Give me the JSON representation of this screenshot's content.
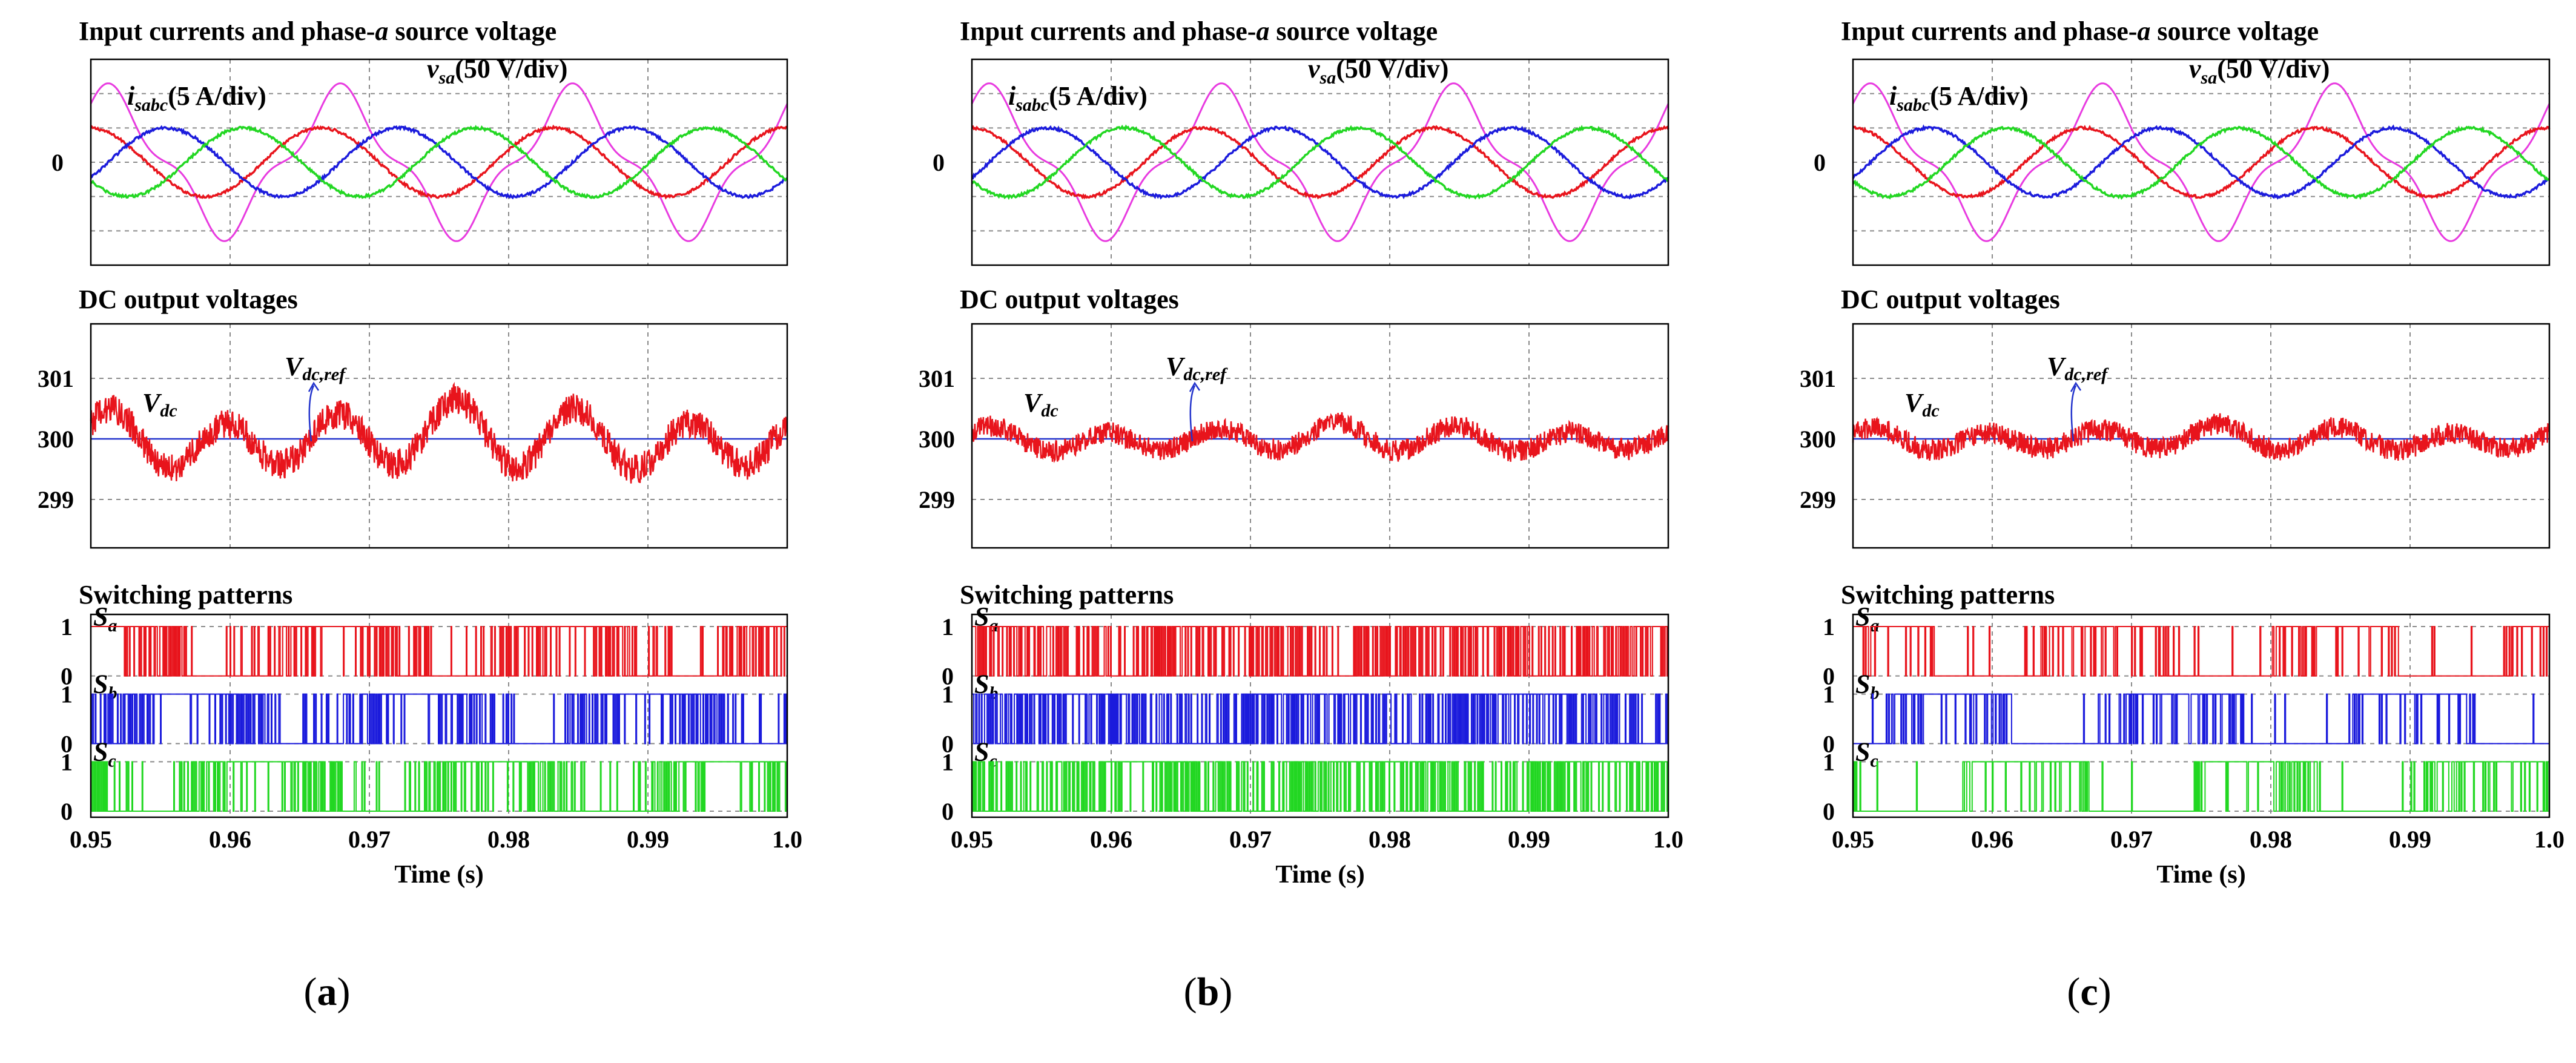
{
  "colors": {
    "phase_a": "#e8141c",
    "phase_b": "#1b1bdc",
    "phase_c": "#22d722",
    "source_voltage": "#e83be0",
    "vdc_ref": "#2233cc",
    "grid": "#8a8a8a"
  },
  "chart_data": [
    {
      "label": "(a)",
      "type": "line",
      "x_label": "Time (s)",
      "x_ticks": [
        "0.95",
        "0.96",
        "0.97",
        "0.98",
        "0.99",
        "1.0"
      ],
      "xlim": [
        0.95,
        1.0
      ],
      "currents": {
        "title": "Input currents and phase-a source voltage",
        "title_parts": [
          "Input currents and phase-",
          "a",
          " source voltage"
        ],
        "y_tick": "0",
        "current_label_main": "i",
        "current_label_sub": "sabc",
        "current_label_scale": "(5 A/div)",
        "voltage_label_main": "v",
        "voltage_label_sub": "sa",
        "voltage_label_scale": "(50 V/div)",
        "frequency_hz": 60,
        "current_amplitude_div": 1.0,
        "current_phase_deg": [
          30,
          -90,
          150
        ],
        "voltage_amplitude_div": 2.3,
        "voltage_phase_deg": 0,
        "voltage_shape": "peaked sinusoid",
        "ylim_div": [
          -3,
          3
        ]
      },
      "dc": {
        "title": "DC output voltages",
        "y_ticks": [
          "301",
          "300",
          "299"
        ],
        "ylim": [
          298.2,
          301.9
        ],
        "vdc_ref": 300,
        "ripple_peak_to_peak": 1.2,
        "ripple_frequency_hz": 120,
        "noise": 0.25,
        "vdc_label_main": "V",
        "vdc_label_sub": "dc",
        "ref_label_main": "V",
        "ref_label_sub": "dc,ref"
      },
      "switching": {
        "title": "Switching patterns",
        "signals": [
          {
            "name_main": "S",
            "name_sub": "a",
            "high": "1",
            "low": "0",
            "duty_pattern": "chattering"
          },
          {
            "name_main": "S",
            "name_sub": "b",
            "high": "1",
            "low": "0",
            "duty_pattern": "chattering"
          },
          {
            "name_main": "S",
            "name_sub": "c",
            "high": "1",
            "low": "0",
            "duty_pattern": "chattering"
          }
        ]
      }
    },
    {
      "label": "(b)",
      "type": "line",
      "x_label": "Time (s)",
      "x_ticks": [
        "0.95",
        "0.96",
        "0.97",
        "0.98",
        "0.99",
        "1.0"
      ],
      "xlim": [
        0.95,
        1.0
      ],
      "currents": {
        "title": "Input currents and phase-a source voltage",
        "title_parts": [
          "Input currents and phase-",
          "a",
          " source voltage"
        ],
        "y_tick": "0",
        "current_label_main": "i",
        "current_label_sub": "sabc",
        "current_label_scale": "(5 A/div)",
        "voltage_label_main": "v",
        "voltage_label_sub": "sa",
        "voltage_label_scale": "(50 V/div)",
        "frequency_hz": 60,
        "current_amplitude_div": 1.0,
        "current_phase_deg": [
          30,
          -90,
          150
        ],
        "voltage_amplitude_div": 2.3,
        "voltage_phase_deg": 0,
        "voltage_shape": "peaked sinusoid",
        "ylim_div": [
          -3,
          3
        ]
      },
      "dc": {
        "title": "DC output voltages",
        "y_ticks": [
          "301",
          "300",
          "299"
        ],
        "ylim": [
          298.2,
          301.9
        ],
        "vdc_ref": 300,
        "ripple_peak_to_peak": 0.5,
        "ripple_frequency_hz": 120,
        "noise": 0.18,
        "vdc_label_main": "V",
        "vdc_label_sub": "dc",
        "ref_label_main": "V",
        "ref_label_sub": "dc,ref"
      },
      "switching": {
        "title": "Switching patterns",
        "signals": [
          {
            "name_main": "S",
            "name_sub": "a",
            "high": "1",
            "low": "0",
            "duty_pattern": "dense"
          },
          {
            "name_main": "S",
            "name_sub": "b",
            "high": "1",
            "low": "0",
            "duty_pattern": "dense"
          },
          {
            "name_main": "S",
            "name_sub": "c",
            "high": "1",
            "low": "0",
            "duty_pattern": "dense"
          }
        ]
      }
    },
    {
      "label": "(c)",
      "type": "line",
      "x_label": "Time (s)",
      "x_ticks": [
        "0.95",
        "0.96",
        "0.97",
        "0.98",
        "0.99",
        "1.0"
      ],
      "xlim": [
        0.95,
        1.0
      ],
      "currents": {
        "title": "Input currents and phase-a source voltage",
        "title_parts": [
          "Input currents and phase-",
          "a",
          " source voltage"
        ],
        "y_tick": "0",
        "current_label_main": "i",
        "current_label_sub": "sabc",
        "current_label_scale": "(5 A/div)",
        "voltage_label_main": "v",
        "voltage_label_sub": "sa",
        "voltage_label_scale": "(50 V/div)",
        "frequency_hz": 60,
        "current_amplitude_div": 1.0,
        "current_phase_deg": [
          30,
          -90,
          150
        ],
        "voltage_amplitude_div": 2.3,
        "voltage_phase_deg": 0,
        "voltage_shape": "peaked sinusoid",
        "ylim_div": [
          -3,
          3
        ]
      },
      "dc": {
        "title": "DC output voltages",
        "y_ticks": [
          "301",
          "300",
          "299"
        ],
        "ylim": [
          298.2,
          301.9
        ],
        "vdc_ref": 300,
        "ripple_peak_to_peak": 0.45,
        "ripple_frequency_hz": 120,
        "noise": 0.18,
        "vdc_label_main": "V",
        "vdc_label_sub": "dc",
        "ref_label_main": "V",
        "ref_label_sub": "dc,ref"
      },
      "switching": {
        "title": "Switching patterns",
        "signals": [
          {
            "name_main": "S",
            "name_sub": "a",
            "high": "1",
            "low": "0",
            "duty_pattern": "sector-based"
          },
          {
            "name_main": "S",
            "name_sub": "b",
            "high": "1",
            "low": "0",
            "duty_pattern": "sector-based"
          },
          {
            "name_main": "S",
            "name_sub": "c",
            "high": "1",
            "low": "0",
            "duty_pattern": "sector-based"
          }
        ]
      }
    }
  ]
}
